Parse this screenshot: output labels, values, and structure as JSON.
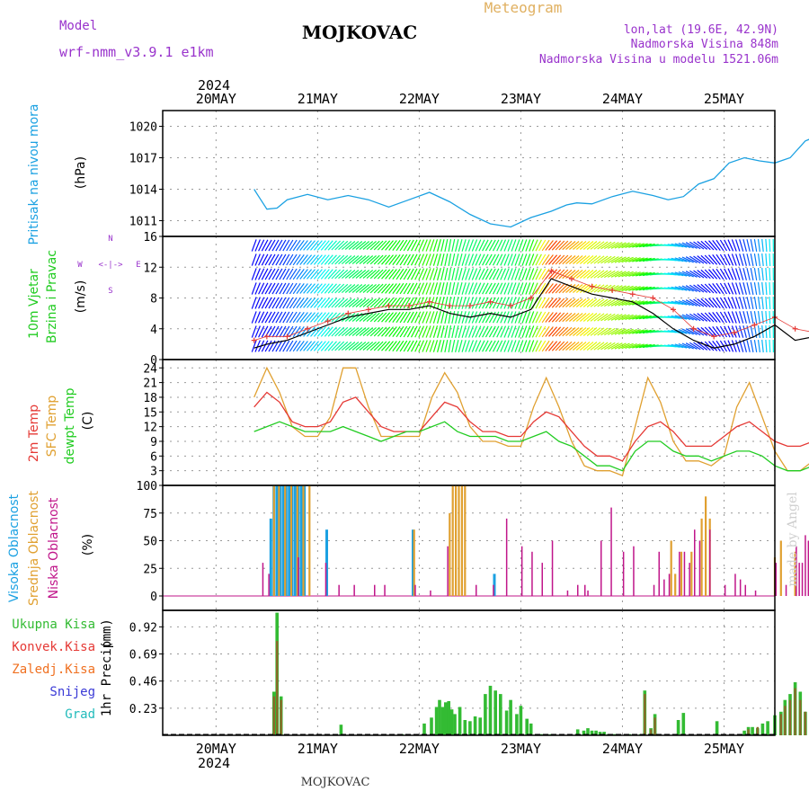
{
  "header": {
    "model_label": "Model",
    "model_name": "wrf-nmm_v3.9.1 e1km",
    "station": "MOJKOVAC",
    "product": "Meteogram",
    "coords": "lon,lat (19.6E, 42.9N)",
    "elevation": "Nadmorska Visina 848m",
    "model_elevation": "Nadmorska Visina u modelu 1521.06m"
  },
  "footer": {
    "station": "MOJKOVAC",
    "credit": "made by Angel"
  },
  "colors": {
    "pressure": "#1ba1e2",
    "speed_line": "#000000",
    "gust_marker": "#e53935",
    "t2m": "#e53935",
    "tsfc": "#e0a030",
    "dewpt": "#22cc22",
    "high_cloud": "#1ba1e2",
    "mid_cloud": "#e0a030",
    "low_cloud": "#c0168a",
    "precip_total": "#33bb33",
    "precip_conv": "#e53935",
    "precip_frozen": "#f07020",
    "snow": "#3a3ad6",
    "hail": "#22bbbb",
    "axis_label_purple": "#9933cc"
  },
  "chart_data": [
    {
      "id": "pressure",
      "type": "line",
      "ylabel_lines": [
        "Pritisak na nivou mora",
        "(hPa)"
      ],
      "yticks": [
        1011,
        1014,
        1017,
        1020
      ],
      "ylim": [
        1009.5,
        1021.5
      ],
      "x_days": [
        0.375,
        0.4,
        0.5,
        0.6,
        0.7,
        0.9,
        1.1,
        1.3,
        1.5,
        1.7,
        1.9,
        2.1,
        2.3,
        2.5,
        2.7,
        2.9,
        3.1,
        3.3,
        3.45,
        3.55,
        3.7,
        3.9,
        4.1,
        4.3,
        4.45,
        4.6,
        4.75,
        4.9,
        5.05,
        5.2,
        5.35,
        5.5,
        5.65,
        5.8,
        5.95,
        6.1,
        6.25,
        6.4,
        6.5
      ],
      "values": [
        1014.0,
        1013.6,
        1012.1,
        1012.2,
        1013.0,
        1013.5,
        1013.0,
        1013.4,
        1013.0,
        1012.3,
        1013.0,
        1013.7,
        1012.8,
        1011.6,
        1010.7,
        1010.4,
        1011.3,
        1011.9,
        1012.5,
        1012.7,
        1012.6,
        1013.3,
        1013.8,
        1013.4,
        1013.0,
        1013.3,
        1014.5,
        1015.0,
        1016.5,
        1017.0,
        1016.7,
        1016.5,
        1017.0,
        1018.6,
        1019.2,
        1019.0,
        1019.1,
        1018.8,
        1016.5
      ]
    },
    {
      "id": "wind",
      "type": "line",
      "ylabel_lines": [
        "10m Vjetar",
        "Brzina i Pravac",
        "(m/s)"
      ],
      "compass": {
        "n": "N",
        "s": "S",
        "e": "E",
        "w": "W",
        "arrow": "<-|->"
      },
      "yticks": [
        0,
        4,
        8,
        12,
        16
      ],
      "ylim": [
        0,
        16
      ],
      "x_days": [
        0.375,
        0.5,
        0.7,
        0.9,
        1.1,
        1.3,
        1.5,
        1.7,
        1.9,
        2.1,
        2.3,
        2.5,
        2.7,
        2.9,
        3.1,
        3.3,
        3.5,
        3.7,
        3.9,
        4.1,
        4.3,
        4.5,
        4.7,
        4.9,
        5.1,
        5.3,
        5.5,
        5.7,
        5.9,
        6.1,
        6.3,
        6.5
      ],
      "series": [
        {
          "values": [
            1.5,
            2.0,
            2.5,
            3.5,
            4.5,
            5.5,
            6.0,
            6.5,
            6.5,
            7.0,
            6.0,
            5.5,
            6.0,
            5.5,
            6.5,
            10.5,
            9.5,
            8.5,
            8.0,
            7.5,
            6.0,
            4.0,
            2.5,
            1.5,
            2.0,
            3.0,
            4.5,
            2.5,
            3.0,
            2.0,
            2.5,
            2.0
          ]
        },
        {
          "markers": "cross",
          "values": [
            2.5,
            3.0,
            3.0,
            4.0,
            5.0,
            6.0,
            6.5,
            7.0,
            7.0,
            7.5,
            7.0,
            7.0,
            7.5,
            7.0,
            8.0,
            11.5,
            10.5,
            9.5,
            9.0,
            8.5,
            8.0,
            6.5,
            4.0,
            3.0,
            3.5,
            4.5,
            5.5,
            4.0,
            3.5,
            3.0,
            3.0,
            2.5
          ]
        }
      ],
      "direction_deg": [
        200,
        210,
        210,
        220,
        220,
        230,
        230,
        220,
        210,
        200,
        190,
        200,
        210,
        200,
        200,
        220,
        230,
        230,
        240,
        250,
        260,
        280,
        300,
        320,
        340,
        350,
        0,
        20,
        40,
        60,
        80,
        60
      ]
    },
    {
      "id": "temperature",
      "type": "line",
      "ylabel_lines": [
        "2m Temp",
        "SFC Temp",
        "dewpt Temp",
        "(C)"
      ],
      "yticks": [
        3,
        6,
        9,
        12,
        15,
        18,
        21,
        24
      ],
      "ylim": [
        0,
        25.7
      ],
      "x_days": [
        0.375,
        0.5,
        0.625,
        0.75,
        0.875,
        1.0,
        1.125,
        1.25,
        1.375,
        1.5,
        1.625,
        1.75,
        1.875,
        2.0,
        2.125,
        2.25,
        2.375,
        2.5,
        2.625,
        2.75,
        2.875,
        3.0,
        3.125,
        3.25,
        3.375,
        3.5,
        3.625,
        3.75,
        3.875,
        4.0,
        4.125,
        4.25,
        4.375,
        4.5,
        4.625,
        4.75,
        4.875,
        5.0,
        5.125,
        5.25,
        5.375,
        5.5,
        5.625,
        5.75,
        5.875,
        6.0,
        6.125,
        6.25,
        6.375,
        6.5
      ],
      "series": [
        {
          "values": [
            16,
            19,
            17,
            13,
            12,
            12,
            13,
            17,
            18,
            15,
            12,
            11,
            11,
            11,
            14,
            17,
            16,
            13,
            11,
            11,
            10,
            10,
            13,
            15,
            14,
            11,
            8,
            6,
            6,
            5,
            9,
            12,
            13,
            11,
            8,
            8,
            8,
            10,
            12,
            13,
            11,
            9,
            8,
            8,
            9,
            11,
            12,
            11,
            9,
            9
          ]
        },
        {
          "values": [
            18,
            24,
            19,
            12,
            10,
            10,
            14,
            24,
            24,
            16,
            10,
            10,
            10,
            10,
            18,
            23,
            19,
            12,
            9,
            9,
            8,
            8,
            16,
            22,
            16,
            9,
            4,
            3,
            3,
            2,
            12,
            22,
            17,
            9,
            5,
            5,
            4,
            6,
            16,
            21,
            14,
            7,
            3,
            3,
            5,
            14,
            20,
            15,
            7,
            15
          ]
        },
        {
          "values": [
            11,
            12,
            13,
            12,
            11,
            11,
            11,
            12,
            11,
            10,
            9,
            10,
            11,
            11,
            12,
            13,
            11,
            10,
            10,
            10,
            9,
            9,
            10,
            11,
            9,
            8,
            6,
            4,
            4,
            3,
            7,
            9,
            9,
            7,
            6,
            6,
            5,
            6,
            7,
            7,
            6,
            4,
            3,
            3,
            4,
            6,
            6,
            4,
            3,
            8
          ]
        }
      ]
    },
    {
      "id": "cloud",
      "type": "bar",
      "ylabel_lines": [
        "Visoka Oblacnost",
        "Srednja Oblacnost",
        "Niska Oblacnost",
        "(%)"
      ],
      "yticks": [
        0,
        25,
        50,
        75,
        100
      ],
      "ylim": [
        0,
        100
      ],
      "series": [
        {
          "x_days": [
            0.55,
            0.58,
            0.61,
            0.64,
            0.67,
            0.7,
            0.73,
            0.76,
            0.79,
            0.82,
            0.85,
            0.88,
            1.1,
            1.95,
            2.75
          ],
          "values": [
            70,
            100,
            100,
            100,
            100,
            100,
            100,
            100,
            100,
            100,
            100,
            100,
            60,
            60,
            20
          ]
        },
        {
          "x_days": [
            0.57,
            0.62,
            0.68,
            0.74,
            0.8,
            0.86,
            0.92,
            1.95,
            2.3,
            2.33,
            2.36,
            2.39,
            2.42,
            2.45,
            4.48,
            4.52,
            4.58,
            4.68,
            4.78,
            4.82,
            4.86,
            5.5,
            5.56,
            5.7,
            5.9,
            5.94,
            6.02,
            6.1,
            6.18,
            6.25,
            6.3,
            6.35,
            6.42,
            6.47
          ],
          "values": [
            100,
            100,
            100,
            100,
            100,
            100,
            100,
            60,
            75,
            100,
            100,
            100,
            100,
            100,
            50,
            20,
            40,
            40,
            70,
            90,
            70,
            35,
            50,
            40,
            25,
            100,
            100,
            100,
            100,
            100,
            100,
            100,
            100,
            100
          ]
        },
        {
          "x_days": [
            0.45,
            0.51,
            0.8,
            1.07,
            1.2,
            1.35,
            1.55,
            1.65,
            1.95,
            2.1,
            2.27,
            2.55,
            2.72,
            2.85,
            3.0,
            3.1,
            3.2,
            3.3,
            3.45,
            3.55,
            3.62,
            3.65,
            3.78,
            3.88,
            4.0,
            4.1,
            4.3,
            4.35,
            4.4,
            4.45,
            4.55,
            4.6,
            4.65,
            4.7,
            4.75,
            4.85,
            5.0,
            5.1,
            5.15,
            5.2,
            5.3,
            5.5,
            5.6,
            5.7,
            5.73,
            5.76,
            5.79,
            5.82,
            5.88
          ],
          "values": [
            30,
            20,
            35,
            30,
            10,
            10,
            10,
            10,
            10,
            5,
            45,
            10,
            10,
            70,
            45,
            40,
            30,
            50,
            5,
            10,
            10,
            5,
            50,
            80,
            40,
            45,
            10,
            40,
            15,
            20,
            40,
            40,
            30,
            60,
            50,
            60,
            10,
            20,
            15,
            10,
            5,
            30,
            10,
            45,
            30,
            30,
            55,
            50,
            30
          ]
        }
      ]
    },
    {
      "id": "precip",
      "type": "bar",
      "ylabel_lines": [
        "1hr Precip",
        "(mm)"
      ],
      "legend": [
        "Ukupna Kisa",
        "Konvek.Kisa",
        "Zaledj.Kisa",
        "Snijeg",
        "Grad"
      ],
      "yticks": [
        0.23,
        0.46,
        0.69,
        0.92
      ],
      "ylim": [
        0,
        1.06
      ],
      "series": [
        {
          "x_days": [
            0.57,
            0.6,
            0.64,
            1.23,
            1.83,
            1.9,
            2.05,
            2.12,
            2.17,
            2.2,
            2.23,
            2.26,
            2.29,
            2.32,
            2.35,
            2.4,
            2.45,
            2.5,
            2.55,
            2.6,
            2.65,
            2.7,
            2.75,
            2.8,
            2.86,
            2.9,
            2.96,
            3.0,
            3.06,
            3.1,
            3.16,
            3.2,
            3.26,
            3.3,
            3.56,
            3.62,
            3.66,
            3.7,
            3.74,
            3.78,
            3.82,
            3.86,
            3.92,
            4.07,
            4.12,
            4.18,
            4.22,
            4.28,
            4.32,
            4.55,
            4.6,
            4.93,
            5.16,
            5.2,
            5.24,
            5.28,
            5.33,
            5.38,
            5.43,
            5.5,
            5.56,
            5.6,
            5.65,
            5.7,
            5.75,
            5.8,
            5.86,
            5.91,
            5.96,
            6.42,
            6.47
          ],
          "values": [
            0.37,
            1.04,
            0.33,
            0.09,
            0.01,
            0.01,
            0.1,
            0.15,
            0.24,
            0.3,
            0.24,
            0.28,
            0.29,
            0.22,
            0.18,
            0.24,
            0.13,
            0.12,
            0.16,
            0.15,
            0.35,
            0.42,
            0.38,
            0.35,
            0.21,
            0.3,
            0.18,
            0.25,
            0.14,
            0.1,
            0.01,
            0.01,
            0.01,
            0.01,
            0.05,
            0.04,
            0.06,
            0.04,
            0.04,
            0.03,
            0.03,
            0.01,
            0.01,
            0.01,
            0.01,
            0.01,
            0.38,
            0.06,
            0.18,
            0.13,
            0.19,
            0.12,
            0.01,
            0.04,
            0.07,
            0.07,
            0.06,
            0.1,
            0.12,
            0.17,
            0.2,
            0.3,
            0.35,
            0.45,
            0.37,
            0.2,
            0.3,
            0.23,
            0.45,
            0.26,
            0.44
          ]
        },
        {
          "x_days": [
            0.57,
            0.6,
            0.64,
            4.22,
            4.28,
            4.32,
            5.24,
            5.33,
            5.56,
            5.6,
            5.65,
            5.7,
            5.75,
            5.8,
            6.47
          ],
          "values": [
            0.33,
            0.8,
            0.3,
            0.35,
            0.05,
            0.15,
            0.05,
            0.07,
            0.18,
            0.25,
            0.3,
            0.4,
            0.3,
            0.2,
            0.56
          ]
        }
      ]
    }
  ],
  "x_axis": {
    "year": "2024",
    "day_labels": [
      "20MAY",
      "21MAY",
      "22MAY",
      "23MAY",
      "24MAY",
      "25MAY"
    ],
    "day_offsets": [
      0,
      1,
      2,
      3,
      4,
      5
    ],
    "x_start_day": -0.525,
    "x_end_day": 5.5
  }
}
